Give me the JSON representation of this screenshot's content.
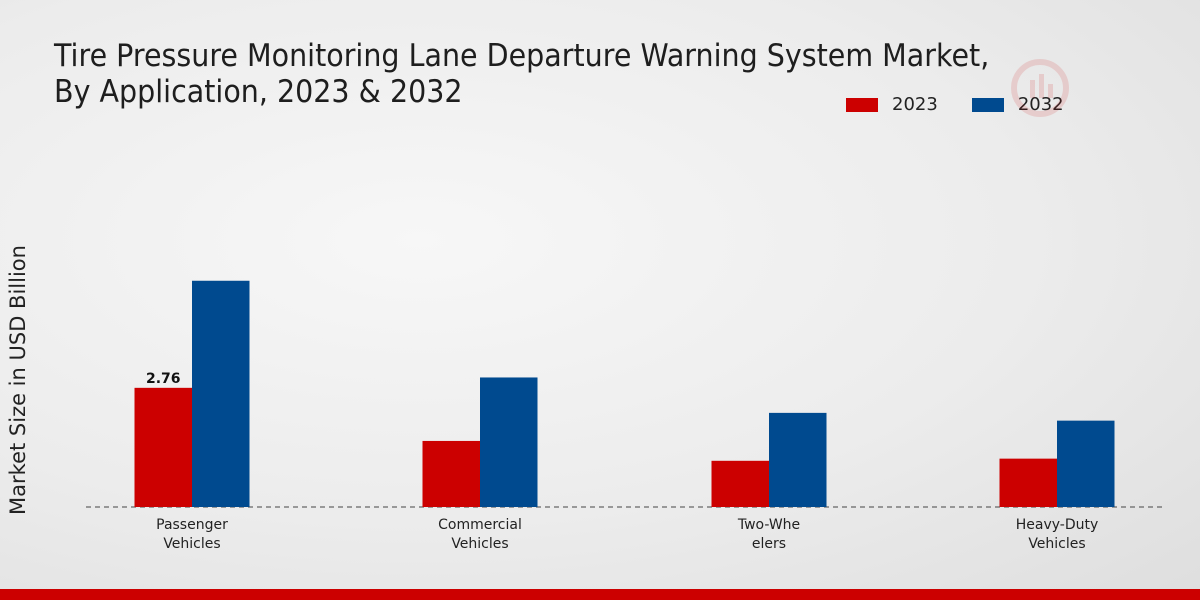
{
  "chart_data": {
    "type": "bar",
    "title": "Tire Pressure Monitoring Lane Departure Warning System Market, By Application, 2023 & 2032",
    "xlabel": "",
    "ylabel": "Market Size in USD Billion",
    "categories": [
      [
        "Passenger",
        "Vehicles"
      ],
      [
        "Commercial",
        "Vehicles"
      ],
      [
        "Two-Whe",
        "elers"
      ],
      [
        "Heavy-Duty",
        "Vehicles"
      ]
    ],
    "series": [
      {
        "name": "2023",
        "color": "#cc0000",
        "values": [
          2.76,
          1.53,
          1.07,
          1.12
        ]
      },
      {
        "name": "2032",
        "color": "#004a8f",
        "values": [
          5.24,
          3.0,
          2.18,
          2.0
        ]
      }
    ],
    "data_labels": [
      {
        "series": 0,
        "index": 0,
        "text": "2.76"
      }
    ],
    "ylim": [
      0,
      8.5
    ],
    "grid": false,
    "legend_position": "top-right"
  }
}
